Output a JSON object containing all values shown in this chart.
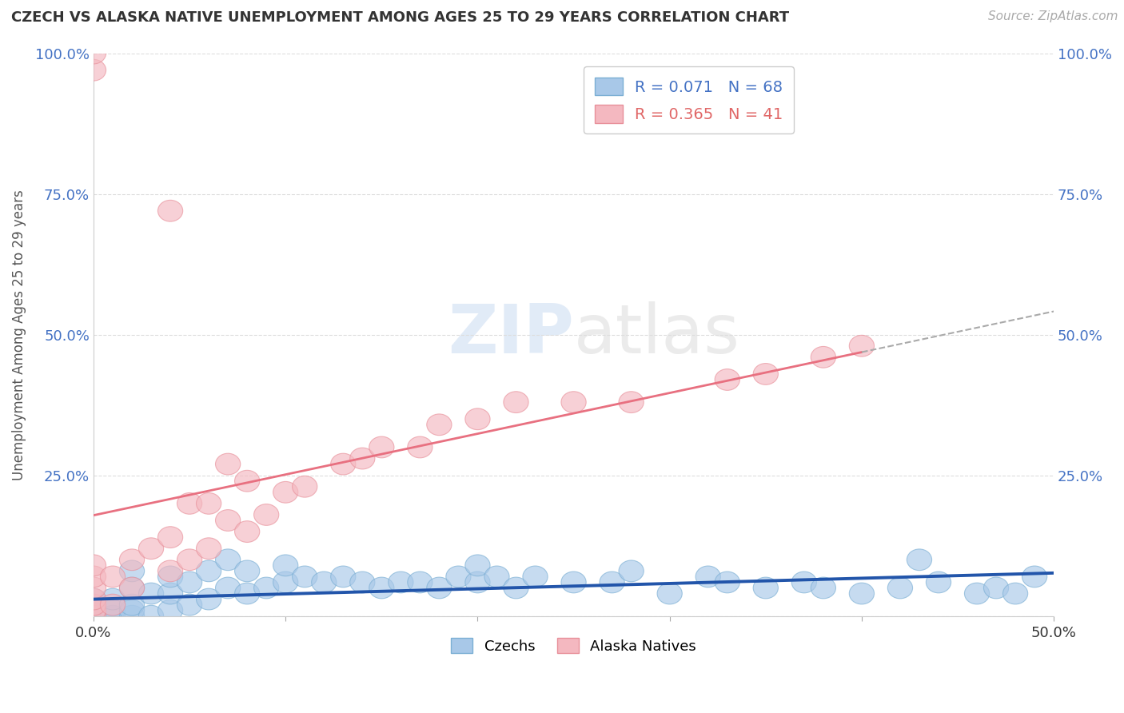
{
  "title": "CZECH VS ALASKA NATIVE UNEMPLOYMENT AMONG AGES 25 TO 29 YEARS CORRELATION CHART",
  "source": "Source: ZipAtlas.com",
  "ylabel": "Unemployment Among Ages 25 to 29 years",
  "xlim": [
    0.0,
    0.5
  ],
  "ylim": [
    0.0,
    1.0
  ],
  "xtick_positions": [
    0.0,
    0.1,
    0.2,
    0.3,
    0.4,
    0.5
  ],
  "xtick_labels": [
    "0.0%",
    "",
    "",
    "",
    "",
    "50.0%"
  ],
  "ytick_positions": [
    0.0,
    0.25,
    0.5,
    0.75,
    1.0
  ],
  "ytick_labels": [
    "",
    "25.0%",
    "50.0%",
    "75.0%",
    "100.0%"
  ],
  "czech_color": "#a8c8e8",
  "alaska_color": "#f4b8c0",
  "czech_edge_color": "#7bafd4",
  "alaska_edge_color": "#e8909a",
  "czech_line_color": "#2255aa",
  "alaska_line_color": "#e87080",
  "czech_R": 0.071,
  "czech_N": 68,
  "alaska_R": 0.365,
  "alaska_N": 41,
  "watermark": "ZIPatlas",
  "tick_color": "#4472c4",
  "czech_x": [
    0.0,
    0.0,
    0.0,
    0.0,
    0.0,
    0.0,
    0.0,
    0.0,
    0.0,
    0.0,
    0.0,
    0.0,
    0.01,
    0.01,
    0.01,
    0.01,
    0.02,
    0.02,
    0.02,
    0.02,
    0.02,
    0.03,
    0.03,
    0.04,
    0.04,
    0.04,
    0.05,
    0.05,
    0.06,
    0.06,
    0.07,
    0.07,
    0.08,
    0.08,
    0.09,
    0.1,
    0.1,
    0.11,
    0.12,
    0.13,
    0.14,
    0.15,
    0.16,
    0.17,
    0.18,
    0.19,
    0.2,
    0.2,
    0.21,
    0.22,
    0.23,
    0.25,
    0.27,
    0.28,
    0.3,
    0.32,
    0.33,
    0.35,
    0.37,
    0.38,
    0.4,
    0.42,
    0.43,
    0.44,
    0.46,
    0.47,
    0.48,
    0.49
  ],
  "czech_y": [
    0.0,
    0.0,
    0.0,
    0.0,
    0.0,
    0.0,
    0.0,
    0.005,
    0.01,
    0.01,
    0.02,
    0.03,
    0.0,
    0.0,
    0.01,
    0.03,
    0.0,
    0.01,
    0.02,
    0.05,
    0.08,
    0.0,
    0.04,
    0.01,
    0.04,
    0.07,
    0.02,
    0.06,
    0.03,
    0.08,
    0.05,
    0.1,
    0.04,
    0.08,
    0.05,
    0.06,
    0.09,
    0.07,
    0.06,
    0.07,
    0.06,
    0.05,
    0.06,
    0.06,
    0.05,
    0.07,
    0.06,
    0.09,
    0.07,
    0.05,
    0.07,
    0.06,
    0.06,
    0.08,
    0.04,
    0.07,
    0.06,
    0.05,
    0.06,
    0.05,
    0.04,
    0.05,
    0.1,
    0.06,
    0.04,
    0.05,
    0.04,
    0.07
  ],
  "alaska_x": [
    0.0,
    0.0,
    0.0,
    0.0,
    0.0,
    0.0,
    0.0,
    0.0,
    0.0,
    0.01,
    0.01,
    0.02,
    0.02,
    0.03,
    0.04,
    0.04,
    0.04,
    0.05,
    0.05,
    0.06,
    0.06,
    0.07,
    0.07,
    0.08,
    0.08,
    0.09,
    0.1,
    0.11,
    0.13,
    0.14,
    0.15,
    0.17,
    0.18,
    0.2,
    0.22,
    0.25,
    0.28,
    0.33,
    0.35,
    0.38,
    0.4
  ],
  "alaska_y": [
    0.0,
    0.01,
    0.02,
    0.03,
    0.05,
    0.07,
    0.09,
    0.97,
    1.0,
    0.02,
    0.07,
    0.05,
    0.1,
    0.12,
    0.08,
    0.14,
    0.72,
    0.1,
    0.2,
    0.12,
    0.2,
    0.17,
    0.27,
    0.15,
    0.24,
    0.18,
    0.22,
    0.23,
    0.27,
    0.28,
    0.3,
    0.3,
    0.34,
    0.35,
    0.38,
    0.38,
    0.38,
    0.42,
    0.43,
    0.46,
    0.48
  ]
}
